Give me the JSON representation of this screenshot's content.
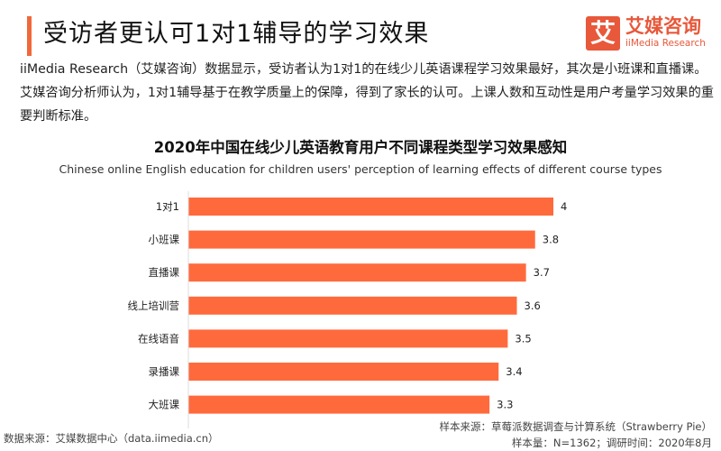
{
  "header": {
    "title": "受访者更认可1对1辅导的学习效果",
    "accent_color": "#f0683a"
  },
  "logo": {
    "mark": "艾",
    "name_cn": "艾媒咨询",
    "name_en": "iiMedia Research",
    "color": "#e8583a"
  },
  "description": "iiMedia Research（艾媒咨询）数据显示，受访者认为1对1的在线少儿英语课程学习效果最好，其次是小班课和直播课。艾媒咨询分析师认为，1对1辅导基于在教学质量上的保障，得到了家长的认可。上课人数和互动性是用户考量学习效果的重要判断标准。",
  "chart_data": {
    "type": "bar",
    "orientation": "horizontal",
    "title": "2020年中国在线少儿英语教育用户不同课程类型学习效果感知",
    "subtitle": "Chinese online English education for children users' perception of learning effects of different course types",
    "categories": [
      "1对1",
      "小班课",
      "直播课",
      "线上培训营",
      "在线语音",
      "录播课",
      "大班课"
    ],
    "values": [
      4,
      3.8,
      3.7,
      3.6,
      3.5,
      3.4,
      3.3
    ],
    "xlim": [
      0,
      4
    ],
    "grid": false,
    "bar_color": "#ff6a3d"
  },
  "footer": {
    "data_source": "数据来源：艾媒数据中心（data.iimedia.cn）",
    "sample_source": "样本来源：草莓派数据调查与计算系统（Strawberry Pie）",
    "sample_info": "样本量：N=1362；调研时间：2020年8月"
  }
}
